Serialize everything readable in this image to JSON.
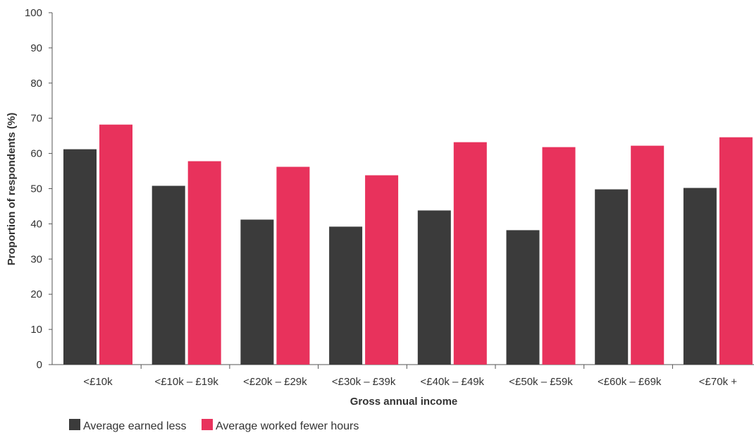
{
  "chart_data": {
    "type": "bar",
    "title": "",
    "xlabel": "Gross annual income",
    "ylabel": "Proportion of respondents (%)",
    "ylim": [
      0,
      100
    ],
    "yticks": [
      0,
      10,
      20,
      30,
      40,
      50,
      60,
      70,
      80,
      90,
      100
    ],
    "categories": [
      "<£10k",
      "<£10k – £19k",
      "<£20k – £29k",
      "<£30k – £39k",
      "<£40k – £49k",
      "<£50k – £59k",
      "<£60k – £69k",
      "<£70k +"
    ],
    "series": [
      {
        "name": "Average earned less",
        "color": "#3b3b3b",
        "values": [
          61.2,
          50.8,
          41.2,
          39.2,
          43.8,
          38.2,
          49.8,
          50.2
        ]
      },
      {
        "name": "Average worked fewer hours",
        "color": "#e8325c",
        "values": [
          68.2,
          57.8,
          56.2,
          53.8,
          63.2,
          61.8,
          62.2,
          64.6
        ]
      }
    ],
    "grid": false,
    "legend_position": "bottom-left"
  }
}
